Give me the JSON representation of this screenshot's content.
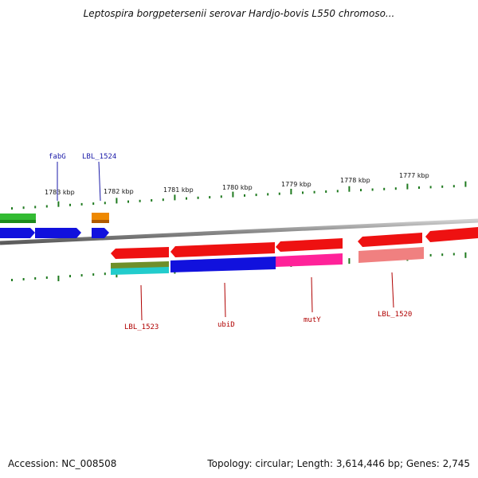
{
  "title": "Leptospira borgpetersenii serovar Hardjo-bovis L550 chromoso...",
  "footer": {
    "accession": "Accession: NC_008508",
    "topology": "Topology: circular; Length: 3,614,446 bp; Genes: 2,745"
  },
  "scale_labels": [
    "1783 kbp",
    "1782 kbp",
    "1781 kbp",
    "1780 kbp",
    "1779 kbp",
    "1778 kbp",
    "1777 kbp"
  ],
  "gene_labels_top": [
    "fabG",
    "LBL_1524"
  ],
  "gene_labels_bottom": [
    "LBL_1523",
    "ubiD",
    "mutY",
    "LBL_1520"
  ],
  "colors": {
    "backbone": "#8a8a8a",
    "ticks": "#1f7a1f",
    "label_top": "#1a1aa8",
    "label_bottom": "#b00000",
    "green": "#33bb33",
    "blue": "#1111dd",
    "orange": "#ee8800",
    "red": "#ee1111",
    "olive": "#6f8f2a",
    "cyan": "#22cccc",
    "magenta": "#ff2299",
    "pink": "#f08080"
  }
}
